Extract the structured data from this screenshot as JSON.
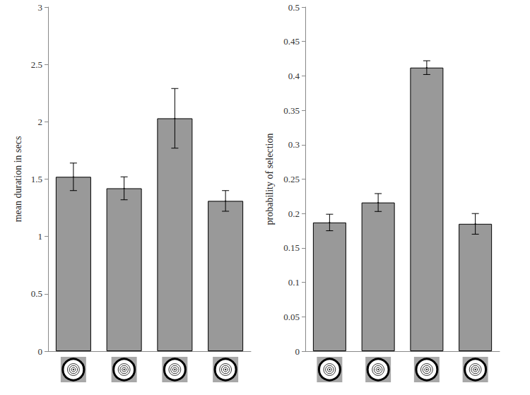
{
  "chart_data": [
    {
      "type": "bar",
      "ylabel": "mean duration in secs",
      "categories": [
        null,
        null,
        null,
        null
      ],
      "values": [
        1.52,
        1.42,
        2.03,
        1.31
      ],
      "errors": [
        0.12,
        0.1,
        0.26,
        0.09
      ],
      "color": "#999999",
      "ylim": [
        0,
        3
      ],
      "yticks": [
        0,
        0.5,
        1,
        1.5,
        2,
        2.5,
        3
      ],
      "grid": false
    },
    {
      "type": "bar",
      "ylabel": "probability of selection",
      "categories": [
        null,
        null,
        null,
        null
      ],
      "values": [
        0.187,
        0.216,
        0.412,
        0.185
      ],
      "errors": [
        0.012,
        0.013,
        0.01,
        0.015
      ],
      "color": "#999999",
      "ylim": [
        0,
        0.5
      ],
      "yticks": [
        0,
        0.05,
        0.1,
        0.15,
        0.2,
        0.25,
        0.3,
        0.35,
        0.4,
        0.45,
        0.5
      ],
      "grid": false
    }
  ]
}
